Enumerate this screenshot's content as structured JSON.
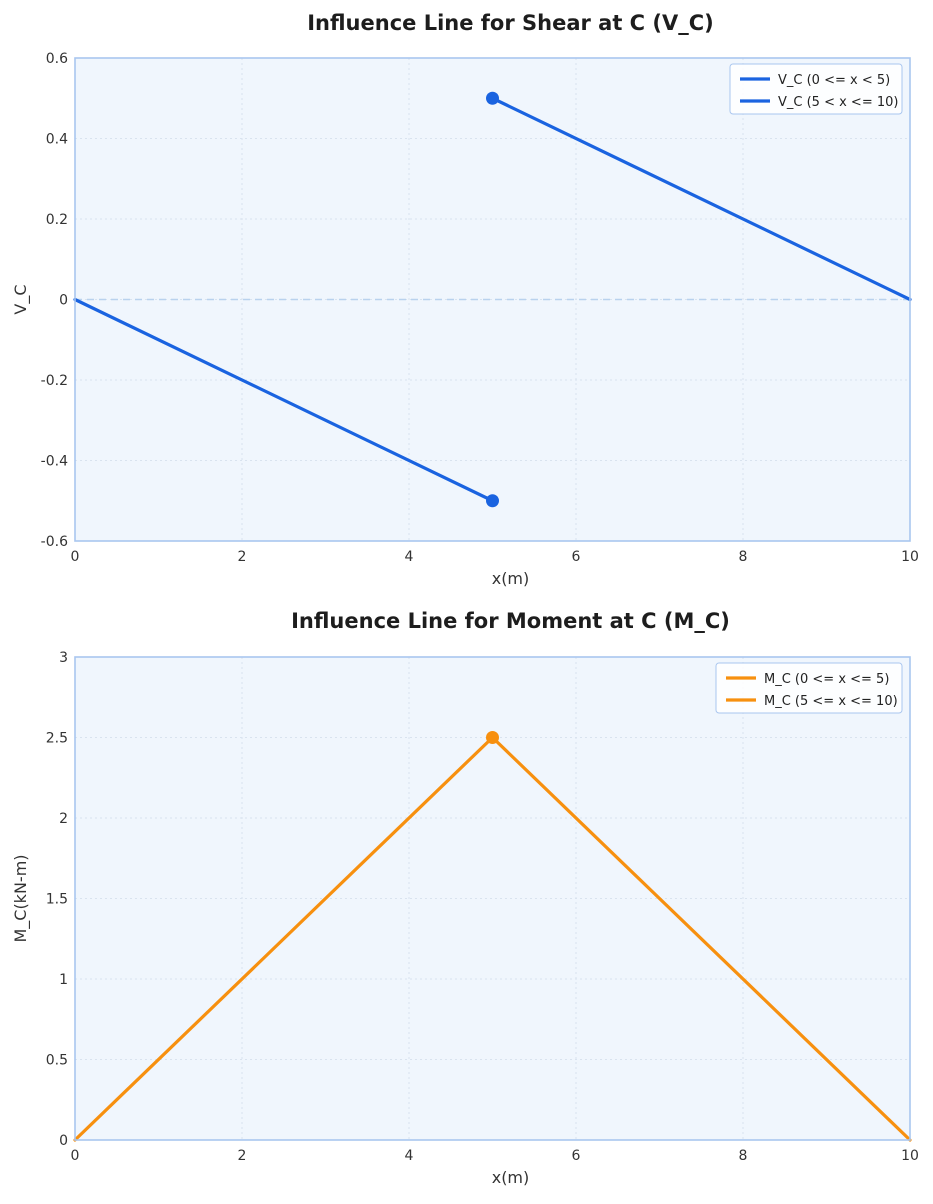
{
  "chart_data": [
    {
      "type": "line",
      "title": "Influence Line for Shear at C (V_C)",
      "xlabel": "x(m)",
      "ylabel": "V_C",
      "xlim": [
        0,
        10
      ],
      "ylim": [
        -0.6,
        0.6
      ],
      "xticks": [
        0,
        2,
        4,
        6,
        8,
        10
      ],
      "xtick_labels": [
        "0",
        "2",
        "4",
        "6",
        "8",
        "10"
      ],
      "yticks": [
        -0.6,
        -0.4,
        -0.2,
        0,
        0.2,
        0.4,
        0.6
      ],
      "ytick_labels": [
        "-0.6",
        "-0.4",
        "-0.2",
        "0",
        "0.2",
        "0.4",
        "0.6"
      ],
      "grid": true,
      "zero_line": true,
      "legend_position": "top-right",
      "color": "#1a63e0",
      "series": [
        {
          "name": "V_C (0 <= x < 5)",
          "x": [
            0,
            5
          ],
          "y": [
            0,
            -0.5
          ],
          "end_marker": true
        },
        {
          "name": "V_C (5 < x <= 10)",
          "x": [
            5,
            10
          ],
          "y": [
            0.5,
            0
          ],
          "start_marker": true
        }
      ]
    },
    {
      "type": "line",
      "title": "Influence Line for Moment at C (M_C)",
      "xlabel": "x(m)",
      "ylabel": "M_C(kN-m)",
      "xlim": [
        0,
        10
      ],
      "ylim": [
        0,
        3
      ],
      "xticks": [
        0,
        2,
        4,
        6,
        8,
        10
      ],
      "xtick_labels": [
        "0",
        "2",
        "4",
        "6",
        "8",
        "10"
      ],
      "yticks": [
        0,
        0.5,
        1,
        1.5,
        2,
        2.5,
        3
      ],
      "ytick_labels": [
        "0",
        "0.5",
        "1",
        "1.5",
        "2",
        "2.5",
        "3"
      ],
      "grid": true,
      "zero_line": false,
      "legend_position": "top-right",
      "color": "#f7900f",
      "series": [
        {
          "name": "M_C (0 <= x <= 5)",
          "x": [
            0,
            5
          ],
          "y": [
            0,
            2.5
          ],
          "end_marker": true
        },
        {
          "name": "M_C (5 <= x <= 10)",
          "x": [
            5,
            10
          ],
          "y": [
            2.5,
            0
          ]
        }
      ]
    }
  ],
  "style": {
    "plot_bg": "#f0f6fd",
    "frame": "#a9c6ef",
    "grid": "#d9e3ef",
    "zero_line": "#b9d2ee",
    "legend_border": "#a9c6ef"
  }
}
